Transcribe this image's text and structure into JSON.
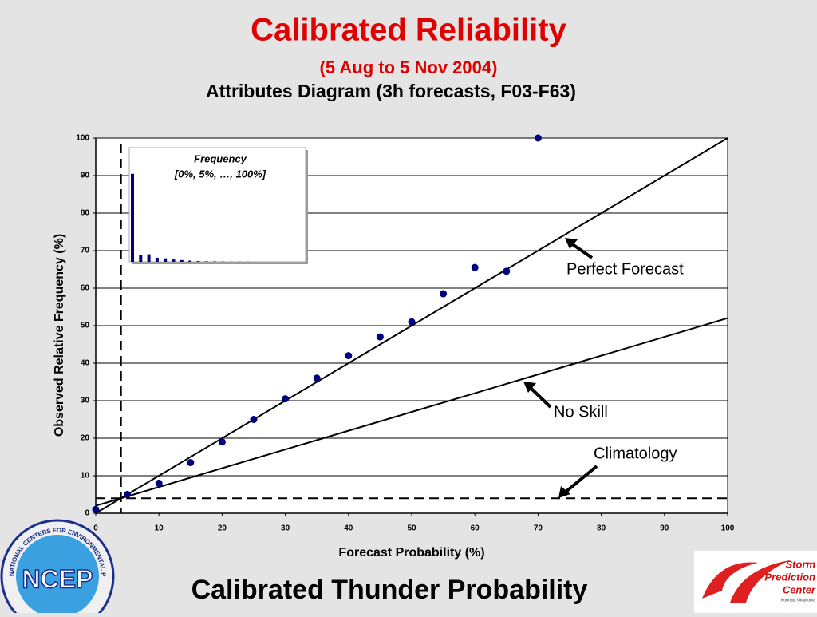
{
  "title": "Calibrated Reliability",
  "subtitle": "(5 Aug to 5 Nov 2004)",
  "footer": "Calibrated Thunder Probability",
  "logos": {
    "ncep": "NCEP",
    "ncep_ring": "NATIONAL CENTERS FOR ENVIRONMENTAL PREDICTION",
    "spc": [
      "Storm",
      "Prediction",
      "Center"
    ],
    "spc_place": "Norman, Oklahoma"
  },
  "chart_data": {
    "type": "scatter",
    "title": "Attributes Diagram (3h forecasts, F03-F63)",
    "x_label": "Forecast Probability (%)",
    "y_label": "Observed Relative Frequency (%)",
    "xlim": [
      0,
      100
    ],
    "ylim": [
      0,
      100
    ],
    "xticks": [
      0,
      10,
      20,
      30,
      40,
      50,
      60,
      70,
      80,
      90,
      100
    ],
    "yticks": [
      0,
      10,
      20,
      30,
      40,
      50,
      60,
      70,
      80,
      90,
      100
    ],
    "grid": true,
    "series": [
      {
        "color": "#00007f",
        "x": [
          0,
          5,
          10,
          15,
          20,
          25,
          30,
          35,
          40,
          45,
          50,
          55,
          60,
          65,
          70
        ],
        "values": [
          1,
          5,
          8,
          13.5,
          19,
          25,
          30.5,
          36,
          42,
          47,
          51,
          58.5,
          65.5,
          64.5,
          100
        ]
      }
    ],
    "perfect_line": {
      "x": [
        0,
        100
      ],
      "values": [
        0,
        100
      ]
    },
    "no_skill_line": {
      "x": [
        0,
        100
      ],
      "values": [
        2,
        52
      ]
    },
    "climatology": 4,
    "annotations": [
      "Perfect Forecast",
      "No Skill",
      "Climatology"
    ],
    "inset": {
      "title": "Frequency",
      "subtitle": "[0%, 5%, …, 100%]",
      "color": "#00007f",
      "values": [
        76,
        6,
        6.5,
        3.5,
        3,
        2,
        1.5,
        1,
        0.6,
        0.4,
        0.3,
        0.2,
        0.1,
        0.1,
        0.1
      ]
    }
  }
}
